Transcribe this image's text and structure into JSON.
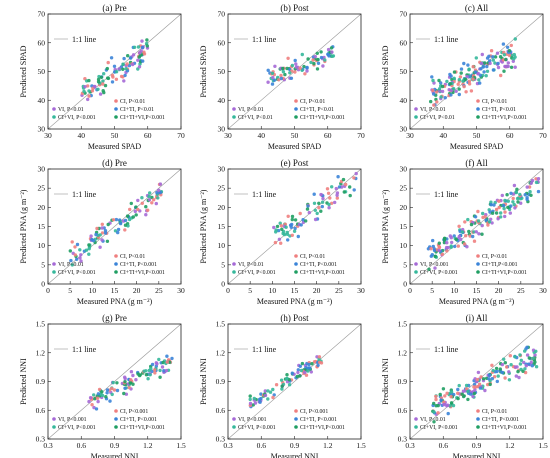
{
  "colors": {
    "ci": "#ef7f7f",
    "vi": "#a569d6",
    "ci_ti": "#3b84d8",
    "ci_vi": "#35b89b",
    "ci_ti_vi": "#1f9e63"
  },
  "chart_data": [
    {
      "panel": "(a) Pre",
      "type": "scatter",
      "variable": "SPAD",
      "title": "(a) Pre",
      "xlabel": "Measured SPAD",
      "ylabel": "Predicted SPAD",
      "xlim": [
        30,
        70
      ],
      "ylim": [
        30,
        70
      ],
      "xticks": [
        30,
        40,
        50,
        60,
        70
      ],
      "yticks": [
        30,
        40,
        50,
        60,
        70
      ],
      "line_label": "1:1 line",
      "legend": [
        {
          "key": "ci",
          "label": "CI, P<0.01"
        },
        {
          "key": "vi",
          "label": "VI, P<0.01"
        },
        {
          "key": "ci_ti",
          "label": "CI+TI, P<0.01"
        },
        {
          "key": "ci_vi",
          "label": "CI+VI, P<0.001"
        },
        {
          "key": "ci_ti_vi",
          "label": "CI+TI+VI,P<0.001"
        }
      ],
      "series_note": "scatter points for each model",
      "gen": {
        "count": 110,
        "xmin": 40,
        "xmax": 60,
        "slope": 0.8,
        "spread": 4
      }
    },
    {
      "panel": "(b) Post",
      "type": "scatter",
      "variable": "SPAD",
      "title": "(b) Post",
      "xlabel": "Measured SPAD",
      "ylabel": "Predicted SPAD",
      "xlim": [
        30,
        70
      ],
      "ylim": [
        30,
        70
      ],
      "xticks": [
        30,
        40,
        50,
        60,
        70
      ],
      "yticks": [
        30,
        40,
        50,
        60,
        70
      ],
      "line_label": "1:1 line",
      "legend": [
        {
          "key": "ci",
          "label": "CI, P<0.01"
        },
        {
          "key": "vi",
          "label": "VI, P<0.01"
        },
        {
          "key": "ci_ti",
          "label": "CI+TI, P<0.01"
        },
        {
          "key": "ci_vi",
          "label": "CI+VI, P<0.01"
        },
        {
          "key": "ci_ti_vi",
          "label": "CI+TI+VI,P<0.001"
        }
      ],
      "gen": {
        "count": 90,
        "xmin": 42,
        "xmax": 62,
        "slope": 0.45,
        "spread": 3
      }
    },
    {
      "panel": "(c) All",
      "type": "scatter",
      "variable": "SPAD",
      "title": "(c) All",
      "xlabel": "Measured SPAD",
      "ylabel": "Predicted SPAD",
      "xlim": [
        30,
        70
      ],
      "ylim": [
        30,
        70
      ],
      "xticks": [
        30,
        40,
        50,
        60,
        70
      ],
      "yticks": [
        30,
        40,
        50,
        60,
        70
      ],
      "line_label": "1:1 line",
      "legend": [
        {
          "key": "ci",
          "label": "CI, P<0.01"
        },
        {
          "key": "vi",
          "label": "VI, P<0.01"
        },
        {
          "key": "ci_ti",
          "label": "CI+TI, P<0.01"
        },
        {
          "key": "ci_vi",
          "label": "CI+VI, P<0.01"
        },
        {
          "key": "ci_ti_vi",
          "label": "CI+TI+VI,P<0.001"
        }
      ],
      "gen": {
        "count": 180,
        "xmin": 36,
        "xmax": 62,
        "slope": 0.55,
        "spread": 4
      }
    },
    {
      "panel": "(d) Pre",
      "type": "scatter",
      "variable": "PNA",
      "title": "(d) Pre",
      "xlabel": "Measured PNA (g m⁻²)",
      "ylabel": "Predicted PNA (g m⁻²)",
      "xlim": [
        0,
        30
      ],
      "ylim": [
        0,
        30
      ],
      "xticks": [
        0,
        5,
        10,
        15,
        20,
        25,
        30
      ],
      "yticks": [
        0,
        5,
        10,
        15,
        20,
        25,
        30
      ],
      "line_label": "1:1 line",
      "legend": [
        {
          "key": "ci",
          "label": "CI, P<0.01"
        },
        {
          "key": "vi",
          "label": "VI, P<0.01"
        },
        {
          "key": "ci_ti",
          "label": "CI+TI, P<0.001"
        },
        {
          "key": "ci_vi",
          "label": "CI+VI, P<0.001"
        },
        {
          "key": "ci_ti_vi",
          "label": "CI+TI+VI,P<0.001"
        }
      ],
      "gen": {
        "count": 110,
        "xmin": 5,
        "xmax": 26,
        "slope": 0.85,
        "spread": 2.5
      }
    },
    {
      "panel": "(e) Post",
      "type": "scatter",
      "variable": "PNA",
      "title": "(e) Post",
      "xlabel": "Measured PNA (g m⁻²)",
      "ylabel": "Predicted PNA (g m⁻²)",
      "xlim": [
        0,
        30
      ],
      "ylim": [
        0,
        30
      ],
      "xticks": [
        0,
        5,
        10,
        15,
        20,
        25,
        30
      ],
      "yticks": [
        0,
        5,
        10,
        15,
        20,
        25,
        30
      ],
      "line_label": "1:1 line",
      "legend": [
        {
          "key": "ci",
          "label": "CI, P<0.01"
        },
        {
          "key": "vi",
          "label": "VI, P<0.01"
        },
        {
          "key": "ci_ti",
          "label": "CI+TI, P<0.001"
        },
        {
          "key": "ci_vi",
          "label": "CI+VI, P<0.001"
        },
        {
          "key": "ci_ti_vi",
          "label": "CI+TI+VI,P<0.001"
        }
      ],
      "gen": {
        "count": 90,
        "xmin": 10,
        "xmax": 29,
        "slope": 0.8,
        "spread": 3
      }
    },
    {
      "panel": "(f) All",
      "type": "scatter",
      "variable": "PNA",
      "title": "(f) All",
      "xlabel": "Measured PNA (g m⁻²)",
      "ylabel": "Predicted PNA (g m⁻²)",
      "xlim": [
        0,
        30
      ],
      "ylim": [
        0,
        30
      ],
      "xticks": [
        0,
        5,
        10,
        15,
        20,
        25,
        30
      ],
      "yticks": [
        0,
        5,
        10,
        15,
        20,
        25,
        30
      ],
      "line_label": "1:1 line",
      "legend": [
        {
          "key": "ci",
          "label": "CI, P<0.01"
        },
        {
          "key": "vi",
          "label": "VI, P<0.001"
        },
        {
          "key": "ci_ti",
          "label": "CI+TI,P<0.001"
        },
        {
          "key": "ci_vi",
          "label": "CI+VI, P<0.001"
        },
        {
          "key": "ci_ti_vi",
          "label": "CI+TI+VI,P<0.001"
        }
      ],
      "gen": {
        "count": 180,
        "xmin": 4,
        "xmax": 29,
        "slope": 0.75,
        "spread": 3
      }
    },
    {
      "panel": "(g) Pre",
      "type": "scatter",
      "variable": "NNI",
      "title": "(g) Pre",
      "xlabel": "Measured NNI",
      "ylabel": "Predicted NNI",
      "xlim": [
        0.3,
        1.5
      ],
      "ylim": [
        0.3,
        1.5
      ],
      "xticks": [
        0.3,
        0.6,
        0.9,
        1.2,
        1.5
      ],
      "yticks": [
        0.3,
        0.6,
        0.9,
        1.2,
        1.5
      ],
      "line_label": "1:1 line",
      "legend": [
        {
          "key": "ci",
          "label": "CI, P<0.001"
        },
        {
          "key": "vi",
          "label": "VI, P<0.001"
        },
        {
          "key": "ci_ti",
          "label": "CI+TI, P<0.001"
        },
        {
          "key": "ci_vi",
          "label": "CI+VI, P<0.001"
        },
        {
          "key": "ci_ti_vi",
          "label": "CI+TI+VI,P<0.001"
        }
      ],
      "gen": {
        "count": 110,
        "xmin": 0.66,
        "xmax": 1.42,
        "slope": 0.55,
        "spread": 0.08
      }
    },
    {
      "panel": "(h) Post",
      "type": "scatter",
      "variable": "NNI",
      "title": "(h) Post",
      "xlabel": "Measured NNI",
      "ylabel": "Predicted NNI",
      "xlim": [
        0.3,
        1.5
      ],
      "ylim": [
        0.3,
        1.5
      ],
      "xticks": [
        0.3,
        0.6,
        0.9,
        1.2,
        1.5
      ],
      "yticks": [
        0.3,
        0.6,
        0.9,
        1.2,
        1.5
      ],
      "line_label": "1:1 line",
      "legend": [
        {
          "key": "ci",
          "label": "CI, P<0.001"
        },
        {
          "key": "vi",
          "label": "VI, P<0.001"
        },
        {
          "key": "ci_ti",
          "label": "CI+TI, P<0.001"
        },
        {
          "key": "ci_vi",
          "label": "CI+VI, P<0.001"
        },
        {
          "key": "ci_ti_vi",
          "label": "CI+TI+VI,P<0.001"
        }
      ],
      "gen": {
        "count": 90,
        "xmin": 0.5,
        "xmax": 1.15,
        "slope": 0.7,
        "spread": 0.07
      }
    },
    {
      "panel": "(i) All",
      "type": "scatter",
      "variable": "NNI",
      "title": "(i) All",
      "xlabel": "Measured NNI",
      "ylabel": "Predicted NNI",
      "xlim": [
        0.3,
        1.5
      ],
      "ylim": [
        0.3,
        1.5
      ],
      "xticks": [
        0.3,
        0.6,
        0.9,
        1.2,
        1.5
      ],
      "yticks": [
        0.3,
        0.6,
        0.9,
        1.2,
        1.5
      ],
      "line_label": "1:1 line",
      "legend": [
        {
          "key": "ci",
          "label": "CI, P<0.01"
        },
        {
          "key": "vi",
          "label": "VI, P<0.01"
        },
        {
          "key": "ci_ti",
          "label": "CI+TI, P<0.001"
        },
        {
          "key": "ci_vi",
          "label": "CI+VI, P<0.001"
        },
        {
          "key": "ci_ti_vi",
          "label": "CI+TI+VI,P<0.001"
        }
      ],
      "gen": {
        "count": 180,
        "xmin": 0.5,
        "xmax": 1.45,
        "slope": 0.6,
        "spread": 0.1
      }
    }
  ]
}
